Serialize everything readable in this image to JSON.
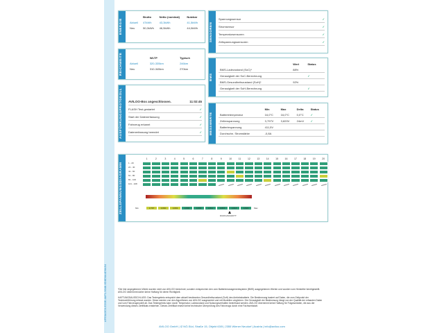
{
  "side_code": "AFE0A3C0-E20E-4AF1-9048-6D8D0A4D9A54",
  "energie": {
    "tab": "ENERGIE",
    "headers": [
      "Brutto",
      "Netto (nominal)",
      "Nutzbar"
    ],
    "rows": [
      {
        "label": "Aktuell",
        "values": [
          "47kWh",
          "43,3kWh",
          "41,5kWh"
        ]
      },
      {
        "label": "Neu",
        "values": [
          "50,0kWh",
          "46,5kWh",
          "44,0kWh"
        ]
      }
    ]
  },
  "reichweite": {
    "tab": "REICHWEITE",
    "headers": [
      "WLTP",
      "Typisch"
    ],
    "rows": [
      {
        "label": "Aktuell",
        "values": [
          "320-335km",
          "246km"
        ]
      },
      {
        "label": "Neu",
        "values": [
          "310-345km",
          "270km"
        ]
      }
    ]
  },
  "protokoll": {
    "tab": "AUSFÜHRUNGSPROTOKOLL",
    "title": "AVILOO-Box angeschlossen.",
    "time": "11:02:45",
    "items": [
      "FLASH Test gestartet",
      "Start der Datenerfassung",
      "Fahrzeug erkannt",
      "Datenerfassung beendet"
    ]
  },
  "sensoren": {
    "tab": "SENSOREN",
    "items": [
      "Spannungssensor",
      "Stromsensor",
      "Temperatursensoren",
      "Zellspannungssensoren"
    ]
  },
  "bms": {
    "tab": "BMS",
    "col_wert": "Wert",
    "col_status": "Status",
    "rows": [
      {
        "label": "BMS-Ladezustand (SoC)*",
        "value": "88%",
        "ok": false
      },
      {
        "label": "Genauigkeit der SoC-Berechnung",
        "value": "",
        "ok": true
      },
      {
        "label": "BMS-Gesundheitszustand (SoH)*",
        "value": "92%",
        "ok": false
      },
      {
        "label": "Genauigkeit der SoH-Berechnung",
        "value": "",
        "ok": true
      }
    ]
  },
  "messwerte": {
    "tab": "MESSWERTE",
    "headers": [
      "Min",
      "Max",
      "Delta",
      "Status"
    ],
    "rows": [
      {
        "label": "Batterietemperatur",
        "values": [
          "16,0°C",
          "16,0°C",
          "0,0°C"
        ],
        "ok": true
      },
      {
        "label": "Zellenspannung",
        "values": [
          "3,797V",
          "3,820V",
          "24mV"
        ],
        "ok": true
      },
      {
        "label": "Batteriespannung",
        "values": [
          "411,5V",
          "",
          ""
        ],
        "ok": false
      },
      {
        "label": "Durchschn. Stromstärke",
        "values": [
          "-0,8A",
          "",
          ""
        ],
        "ok": false
      }
    ]
  },
  "zell": {
    "tab": "ZELLSPANNUNGSDIAGRAMM",
    "cols": [
      "1",
      "2",
      "3",
      "4",
      "5",
      "6",
      "7",
      "8",
      "9",
      "10",
      "11",
      "12",
      "13",
      "14",
      "15",
      "16",
      "17",
      "18",
      "19",
      "20"
    ],
    "rows": [
      "1 - 20",
      "21 - 40",
      "41 - 60",
      "61 - 80",
      "81 - 100",
      "101 - 108"
    ],
    "low_label": "Min",
    "high_label": "Max",
    "marker": "DURCHSCHNITT",
    "legend_values": [
      "3,797",
      "3,800",
      "3,803",
      "3,806",
      "3,809",
      "3,812",
      "3,815",
      "3,818",
      "3,820"
    ]
  },
  "footnote": "*Die hier angegebenen Werte wurden nicht von AVILOO berechnet, sondern entsprechen den vom Batteriemanagementsystem (BMS) ausgegebenen Werten und wurden vom Hersteller bereitgestellt. AVILOO übernimmt daher keine Haftung für deren Richtigkeit.",
  "disclaimer": "HAFTUNGSAUSSCHLUSS: Das Testergebnis entspricht dem aktuell bestimmten Gesundheitszustand (SoH) des Antriebsbatterie. Die Bestimmung basiert auf Daten, die zum Zeitpunkt der Testdurchführung erfasst wurden. Diese werden von den Algorithmen von AVILOO ausgewertet und mit Modellen verglichen. Die Genauigkeit der Bestimmung hängt von der Qualität der erfassten Daten und vom Fahrzeugmodell ab. Das Testergebnis kann durch Temperatur, Ladezustand und Nutzungsverhalten beeinflusst werden. AVILOO übernimmt keine Haftung für Folgeschäden, die aus der Verwendung dieses Zertifikats entstehen. Dieses Zertifikat ersetzt keine technische Überprüfung des Fahrzeugs durch eine Fachwerkstatt.",
  "address": "AVILOO GmbH | IZ NÖ-Süd, Straße 15, Objekt 63/5 | 2355 Wiener Neudorf | Austria | info@aviloo.com",
  "colors": {
    "accent": "#2a8fc4",
    "cell_good": "#2f9e78",
    "cell_warn": "#c7cf3a"
  }
}
